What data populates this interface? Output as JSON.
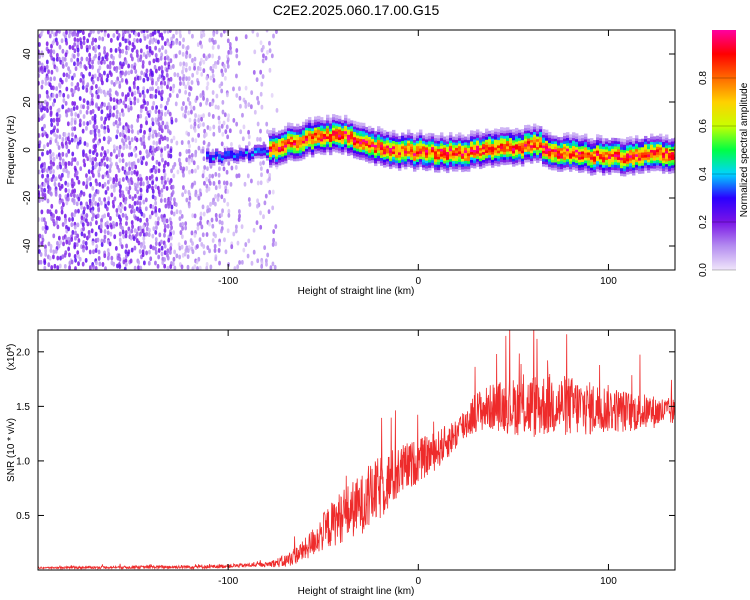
{
  "title": "C2E2.2025.060.17.00.G15",
  "chart_data": [
    {
      "type": "heatmap",
      "xlabel": "Height of straight line (km)",
      "ylabel": "Frequency (Hz)",
      "xlim": [
        -200,
        135
      ],
      "ylim": [
        -50,
        50
      ],
      "xticks": [
        -100,
        0,
        100
      ],
      "yticks": [
        -40,
        -20,
        0,
        20,
        40
      ],
      "ridge": {
        "x": [
          -100,
          -80,
          -70,
          -55,
          -45,
          -38,
          -25,
          -10,
          0,
          15,
          30,
          45,
          55,
          63,
          70,
          80,
          90,
          100,
          110,
          120,
          135
        ],
        "y": [
          -3,
          -1,
          2,
          5,
          6,
          5,
          1,
          -1,
          -1,
          -2,
          -1,
          1,
          1,
          2,
          -1,
          -2,
          -3,
          -3,
          -3,
          -2,
          -2
        ]
      },
      "colorbar": {
        "label": "Normalized spectral amplitude",
        "range": [
          0,
          1
        ],
        "ticks": [
          "0.0",
          "0.2",
          "0.4",
          "0.6",
          "0.8"
        ],
        "tick_values": [
          0,
          0.2,
          0.4,
          0.6,
          0.8
        ],
        "colors": [
          "#f0e6fa",
          "#b48cf0",
          "#7a14e6",
          "#2a00ff",
          "#00d4ff",
          "#00ff44",
          "#c8ff00",
          "#ffd000",
          "#ff6a00",
          "#ff0000",
          "#ff00a0"
        ]
      }
    },
    {
      "type": "line",
      "xlabel": "Height of straight line (km)",
      "ylabel": "SNR (10 * v/v)",
      "scale_label_base": "(x10",
      "scale_label_exp": "4",
      "scale_label_close": ")",
      "xlim": [
        -200,
        135
      ],
      "ylim": [
        0,
        2.2
      ],
      "xticks": [
        -100,
        0,
        100
      ],
      "yticks": [
        0.5,
        1.0,
        1.5,
        2.0
      ],
      "ytick_labels": [
        "0.5",
        "1.0",
        "1.5",
        "2.0"
      ],
      "color": "#ee2b2b",
      "envelope": {
        "x": [
          -200,
          -110,
          -80,
          -70,
          -60,
          -50,
          -40,
          -30,
          -20,
          -10,
          0,
          10,
          20,
          25,
          30,
          40,
          50,
          60,
          70,
          80,
          90,
          100,
          110,
          120,
          135
        ],
        "y": [
          0.02,
          0.03,
          0.05,
          0.08,
          0.18,
          0.35,
          0.5,
          0.6,
          0.75,
          0.9,
          1.0,
          1.1,
          1.25,
          1.35,
          1.45,
          1.5,
          1.5,
          1.5,
          1.52,
          1.5,
          1.48,
          1.48,
          1.45,
          1.45,
          1.45
        ]
      },
      "spread": {
        "x": [
          -200,
          -80,
          -60,
          -40,
          -20,
          0,
          20,
          40,
          60,
          80,
          100,
          135
        ],
        "y": [
          0.008,
          0.02,
          0.1,
          0.25,
          0.3,
          0.2,
          0.15,
          0.22,
          0.3,
          0.28,
          0.22,
          0.12
        ]
      }
    }
  ]
}
